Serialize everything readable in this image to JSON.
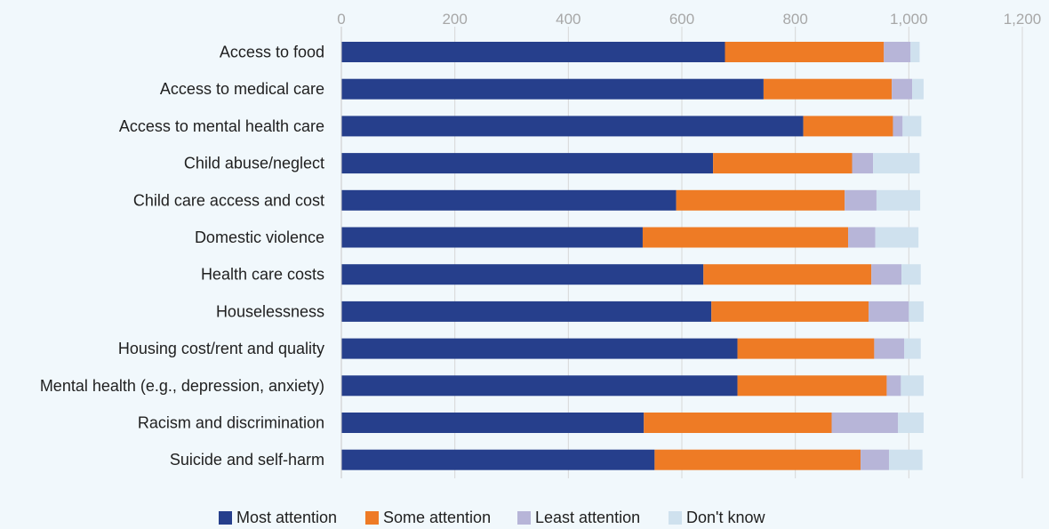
{
  "chart_data": {
    "type": "bar",
    "orientation": "horizontal",
    "stacked": true,
    "title": "",
    "xlabel": "",
    "ylabel": "",
    "xlim": [
      0,
      1200
    ],
    "x_ticks": [
      0,
      200,
      400,
      600,
      800,
      1000,
      1200
    ],
    "x_tick_labels": [
      "0",
      "200",
      "400",
      "600",
      "800",
      "1,000",
      "1,200"
    ],
    "grid": true,
    "legend_position": "bottom",
    "categories": [
      "Access to food",
      "Access to medical care",
      "Access to mental health care",
      "Child abuse/neglect",
      "Child care access and cost",
      "Domestic violence",
      "Health care costs",
      "Houselessness",
      "Housing cost/rent and quality",
      "Mental health (e.g., depression, anxiety)",
      "Racism and discrimination",
      "Suicide and self-harm"
    ],
    "series": [
      {
        "name": "Most attention",
        "color": "#263f8c",
        "values": [
          676,
          744,
          814,
          655,
          590,
          531,
          638,
          652,
          698,
          698,
          533,
          552
        ]
      },
      {
        "name": "Some attention",
        "color": "#ee7b25",
        "values": [
          280,
          226,
          158,
          245,
          297,
          362,
          296,
          277,
          241,
          263,
          331,
          363
        ]
      },
      {
        "name": "Least attention",
        "color": "#b7b5d8",
        "values": [
          47,
          36,
          17,
          37,
          56,
          48,
          53,
          71,
          53,
          25,
          117,
          50
        ]
      },
      {
        "name": "Don't know",
        "color": "#cfe1ee",
        "values": [
          16,
          20,
          33,
          82,
          77,
          76,
          34,
          26,
          29,
          40,
          45,
          59
        ]
      }
    ]
  }
}
